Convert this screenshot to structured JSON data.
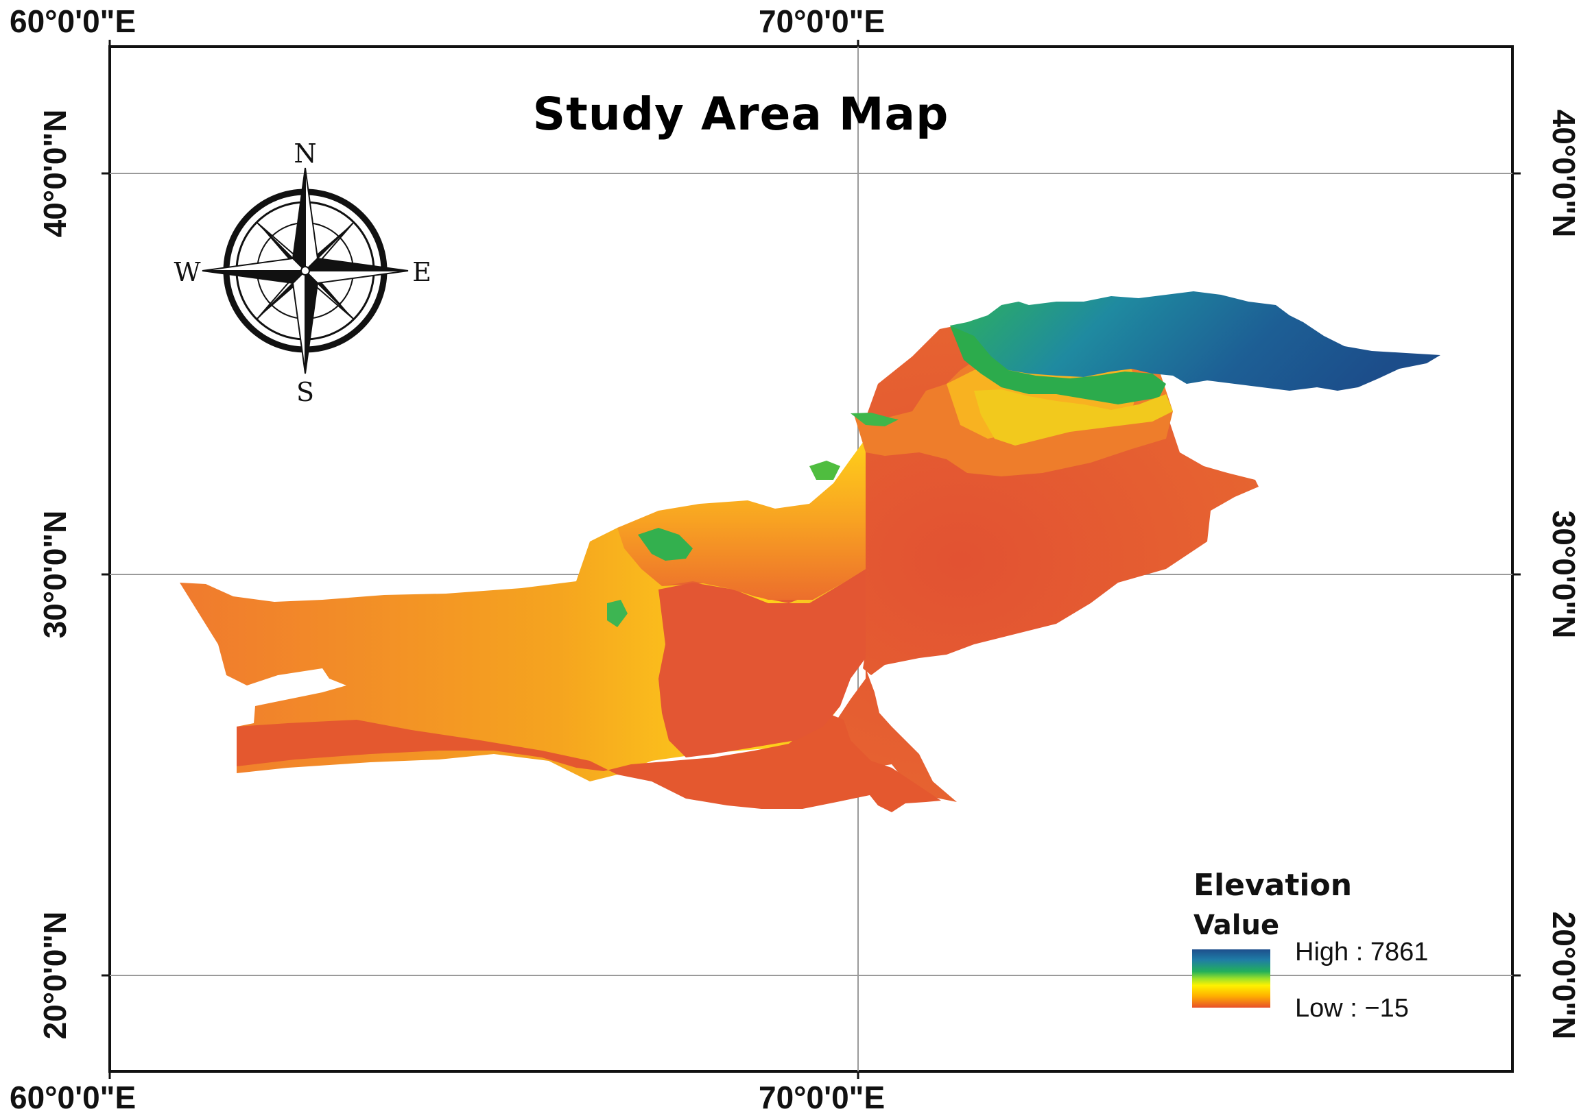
{
  "map": {
    "title": "Study Area Map",
    "top_labels": [
      "60°0'0\"E",
      "70°0'0\"E"
    ],
    "bottom_labels": [
      "60°0'0\"E",
      "70°0'0\"E"
    ],
    "left_labels": [
      "40°0'0\"N",
      "30°0'0\"N",
      "20°0'0\"N"
    ],
    "right_labels": [
      "40°0'0\"N",
      "30°0'0\"N",
      "20°0'0\"N"
    ],
    "compass": {
      "north": "N",
      "south": "S",
      "east": "E",
      "west": "W"
    },
    "legend": {
      "heading": "Elevation",
      "subheading": "Value",
      "high_label": "High : 7861",
      "low_label": "Low : −15"
    },
    "colors": {
      "frame": "#111111",
      "graticule": "#9a9a9a",
      "lowland": "#e45a30",
      "midland": "#f0a020",
      "upland": "#ffe000",
      "highland": "#2fb34a",
      "peak": "#1f5a8c"
    },
    "compass_icon": "compass-rose-icon"
  }
}
